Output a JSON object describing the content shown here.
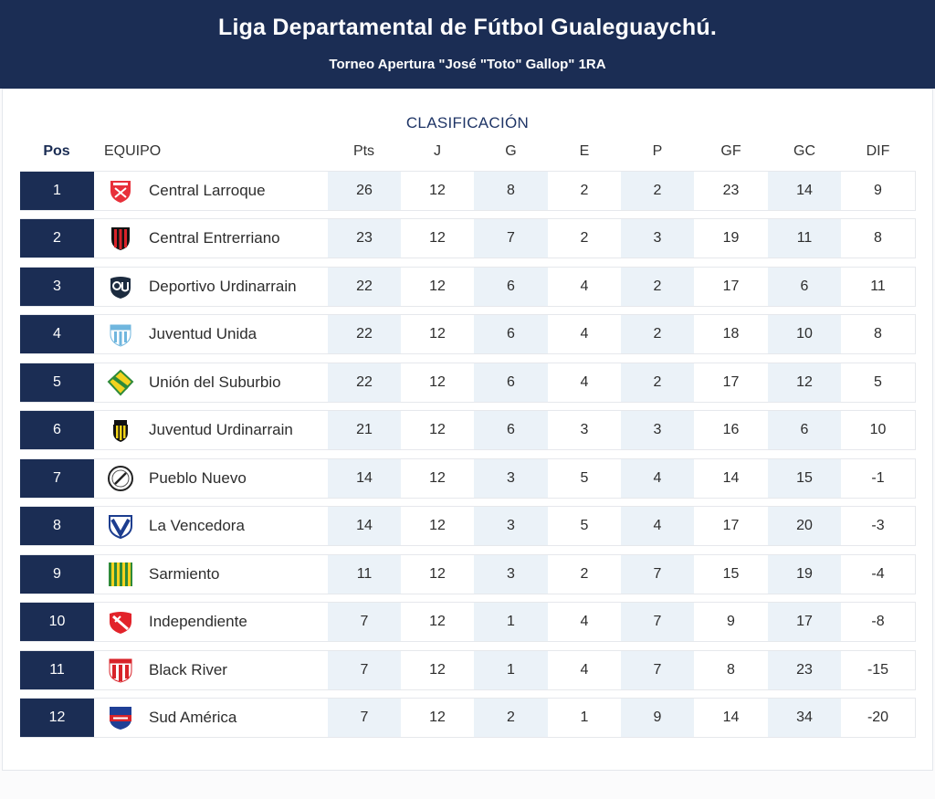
{
  "header": {
    "title": "Liga Departamental de Fútbol Gualeguaychú.",
    "subtitle": "Torneo Apertura \"José \"Toto\" Gallop\" 1RA"
  },
  "table": {
    "caption": "CLASIFICACIÓN",
    "columns": {
      "pos": "Pos",
      "team": "EQUIPO",
      "pts": "Pts",
      "j": "J",
      "g": "G",
      "e": "E",
      "p": "P",
      "gf": "GF",
      "gc": "GC",
      "dif": "DIF"
    },
    "rows": [
      {
        "pos": "1",
        "team": "Central Larroque",
        "logo": "central-larroque-crest",
        "pts": "26",
        "j": "12",
        "g": "8",
        "e": "2",
        "p": "2",
        "gf": "23",
        "gc": "14",
        "dif": "9"
      },
      {
        "pos": "2",
        "team": "Central Entrerriano",
        "logo": "central-entrerriano-crest",
        "pts": "23",
        "j": "12",
        "g": "7",
        "e": "2",
        "p": "3",
        "gf": "19",
        "gc": "11",
        "dif": "8"
      },
      {
        "pos": "3",
        "team": "Deportivo Urdinarrain",
        "logo": "deportivo-urdinarrain-crest",
        "pts": "22",
        "j": "12",
        "g": "6",
        "e": "4",
        "p": "2",
        "gf": "17",
        "gc": "6",
        "dif": "11"
      },
      {
        "pos": "4",
        "team": "Juventud Unida",
        "logo": "juventud-unida-crest",
        "pts": "22",
        "j": "12",
        "g": "6",
        "e": "4",
        "p": "2",
        "gf": "18",
        "gc": "10",
        "dif": "8"
      },
      {
        "pos": "5",
        "team": "Unión del Suburbio",
        "logo": "union-del-suburbio-crest",
        "pts": "22",
        "j": "12",
        "g": "6",
        "e": "4",
        "p": "2",
        "gf": "17",
        "gc": "12",
        "dif": "5"
      },
      {
        "pos": "6",
        "team": "Juventud Urdinarrain",
        "logo": "juventud-urdinarrain-crest",
        "pts": "21",
        "j": "12",
        "g": "6",
        "e": "3",
        "p": "3",
        "gf": "16",
        "gc": "6",
        "dif": "10"
      },
      {
        "pos": "7",
        "team": "Pueblo Nuevo",
        "logo": "pueblo-nuevo-crest",
        "pts": "14",
        "j": "12",
        "g": "3",
        "e": "5",
        "p": "4",
        "gf": "14",
        "gc": "15",
        "dif": "-1"
      },
      {
        "pos": "8",
        "team": "La Vencedora",
        "logo": "la-vencedora-crest",
        "pts": "14",
        "j": "12",
        "g": "3",
        "e": "5",
        "p": "4",
        "gf": "17",
        "gc": "20",
        "dif": "-3"
      },
      {
        "pos": "9",
        "team": "Sarmiento",
        "logo": "sarmiento-crest",
        "pts": "11",
        "j": "12",
        "g": "3",
        "e": "2",
        "p": "7",
        "gf": "15",
        "gc": "19",
        "dif": "-4"
      },
      {
        "pos": "10",
        "team": "Independiente",
        "logo": "independiente-crest",
        "pts": "7",
        "j": "12",
        "g": "1",
        "e": "4",
        "p": "7",
        "gf": "9",
        "gc": "17",
        "dif": "-8"
      },
      {
        "pos": "11",
        "team": "Black River",
        "logo": "black-river-crest",
        "pts": "7",
        "j": "12",
        "g": "1",
        "e": "4",
        "p": "7",
        "gf": "8",
        "gc": "23",
        "dif": "-15"
      },
      {
        "pos": "12",
        "team": "Sud América",
        "logo": "sud-america-crest",
        "pts": "7",
        "j": "12",
        "g": "2",
        "e": "1",
        "p": "9",
        "gf": "14",
        "gc": "34",
        "dif": "-20"
      }
    ]
  },
  "colors": {
    "header_bg": "#1b2d54",
    "pos_bg": "#1b2d54",
    "shade_bg": "#ebf2f8",
    "caption": "#1f3566"
  }
}
